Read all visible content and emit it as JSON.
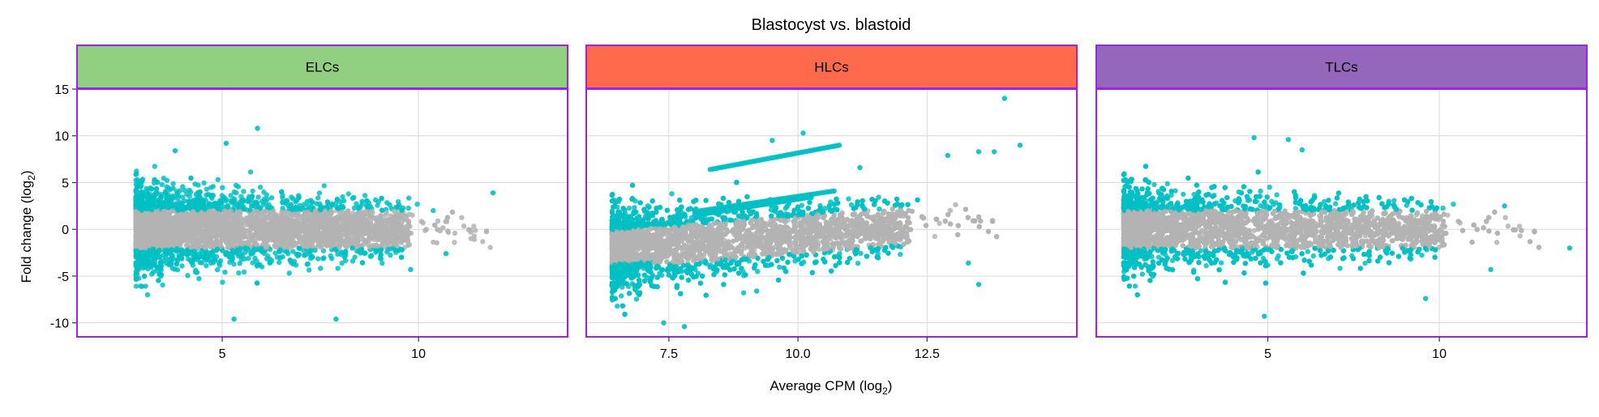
{
  "chart_data": {
    "type": "scatter",
    "title": "Blastocyst vs. blastoid",
    "xlabel": "Average CPM (log",
    "xlabel_sub": "2",
    "xlabel_close": ")",
    "ylabel": "Fold change (log",
    "ylabel_sub": "2",
    "ylabel_close": ")",
    "ylim": [
      -11.5,
      15
    ],
    "y_ticks": [
      15,
      10,
      5,
      0,
      -5,
      -10
    ],
    "y_tick_labels": [
      "15",
      "10",
      "5",
      "0",
      "-5",
      "-10"
    ],
    "grid": true,
    "colors": {
      "significant": "#00BFC4",
      "not_significant": "#B3B3B3",
      "panel_border": "#A020F0",
      "grid": "#D9D9D9"
    },
    "panels": [
      {
        "label": "ELCs",
        "header_color": "#90D080",
        "xlim": [
          1.3,
          13.8
        ],
        "x_ticks": [
          5,
          10
        ],
        "x_tick_labels": [
          "5",
          "10"
        ],
        "min_cpm": 2.8,
        "max_cpm": 12.5,
        "highlight_points": [
          {
            "x": 5.9,
            "y": 10.8
          },
          {
            "x": 5.1,
            "y": 9.2
          },
          {
            "x": 3.8,
            "y": 8.4
          },
          {
            "x": 7.9,
            "y": -9.6
          },
          {
            "x": 5.3,
            "y": -9.6
          },
          {
            "x": 11.9,
            "y": 3.9
          },
          {
            "x": 9.8,
            "y": -4.3
          },
          {
            "x": 10.7,
            "y": -2.6
          }
        ]
      },
      {
        "label": "HLCs",
        "header_color": "#FF6A4D",
        "xlim": [
          5.9,
          15.4
        ],
        "x_ticks": [
          7.5,
          10.0,
          12.5
        ],
        "x_tick_labels": [
          "7.5",
          "10.0",
          "12.5"
        ],
        "min_cpm": 6.4,
        "max_cpm": 14.4,
        "highlight_points": [
          {
            "x": 14.0,
            "y": 14.0
          },
          {
            "x": 10.1,
            "y": 10.3
          },
          {
            "x": 9.5,
            "y": 9.5
          },
          {
            "x": 14.3,
            "y": 9.0
          },
          {
            "x": 13.8,
            "y": 8.3
          },
          {
            "x": 13.5,
            "y": 8.3
          },
          {
            "x": 12.9,
            "y": 7.9
          },
          {
            "x": 11.2,
            "y": 6.6
          },
          {
            "x": 9.2,
            "y": -6.6
          },
          {
            "x": 7.4,
            "y": -10.0
          },
          {
            "x": 7.8,
            "y": -10.4
          },
          {
            "x": 13.3,
            "y": -3.6
          },
          {
            "x": 13.5,
            "y": -5.9
          }
        ]
      },
      {
        "label": "TLCs",
        "header_color": "#9467BD",
        "xlim": [
          0.0,
          14.3
        ],
        "x_ticks": [
          5,
          10
        ],
        "x_tick_labels": [
          "5",
          "10"
        ],
        "min_cpm": 0.8,
        "max_cpm": 13.8,
        "highlight_points": [
          {
            "x": 4.6,
            "y": 9.8
          },
          {
            "x": 5.6,
            "y": 9.6
          },
          {
            "x": 6.0,
            "y": 8.5
          },
          {
            "x": 11.9,
            "y": 2.5
          },
          {
            "x": 13.8,
            "y": -2.0
          },
          {
            "x": 11.5,
            "y": -4.3
          },
          {
            "x": 4.9,
            "y": -9.3
          },
          {
            "x": 9.6,
            "y": -7.4
          }
        ]
      }
    ]
  }
}
